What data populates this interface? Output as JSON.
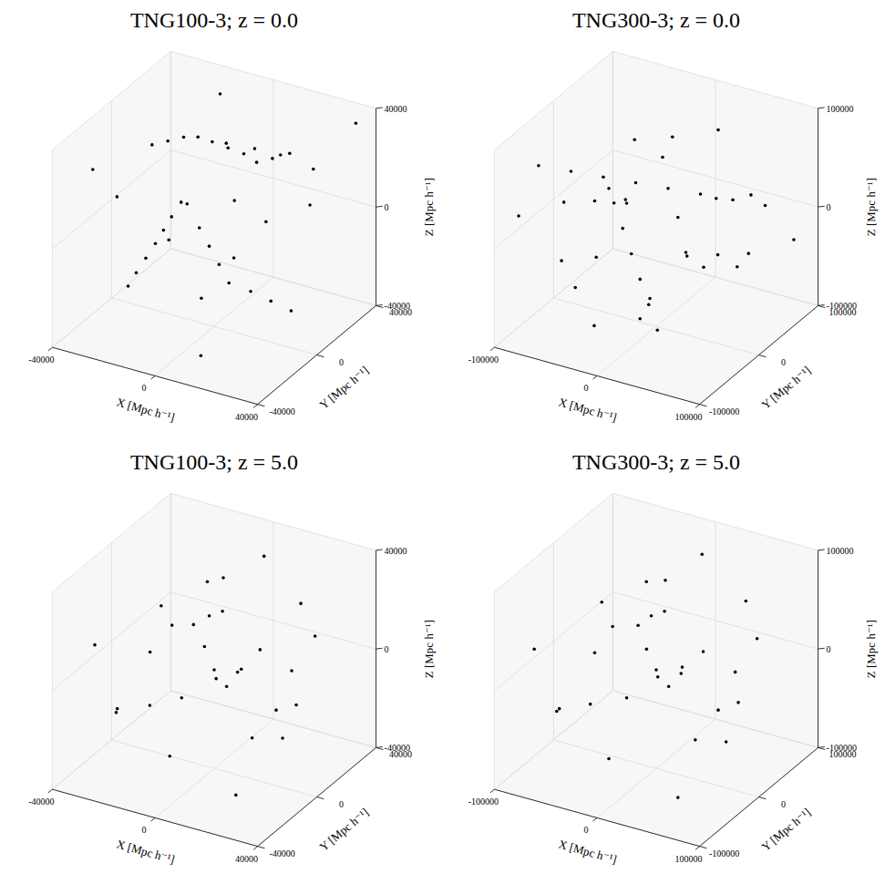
{
  "chart_data": [
    {
      "type": "scatter3d",
      "title": "TNG100-3; z = 0.0",
      "x_label": "X [Mpc h⁻¹]",
      "y_label": "Y [Mpc h⁻¹]",
      "z_label": "Z [Mpc h⁻¹]",
      "xlim": [
        -40000,
        40000
      ],
      "ylim": [
        -40000,
        40000
      ],
      "zlim": [
        -40000,
        40000
      ],
      "xticks": [
        -40000,
        0,
        40000
      ],
      "yticks": [
        -40000,
        0,
        40000
      ],
      "zticks": [
        -40000,
        0,
        40000
      ],
      "grid": true,
      "color": "#000000",
      "marker": "point",
      "x": [
        -30000,
        -25000,
        -20000,
        -15000,
        -10000,
        -5000,
        0,
        5000,
        10000,
        15000,
        -10000,
        -12000,
        -14000,
        -16000,
        -18000,
        -20000,
        -22000,
        0,
        5000,
        10000,
        15000,
        20000,
        25000,
        30000,
        -30000,
        -35000,
        35000,
        20000,
        -5000,
        10000,
        -25000,
        25000,
        0,
        -35000,
        30000,
        -15000,
        15000,
        5000,
        -8000,
        12000
      ],
      "y": [
        10000,
        12000,
        14000,
        15000,
        16000,
        18000,
        20000,
        20000,
        22000,
        25000,
        -5000,
        -8000,
        -10000,
        -12000,
        -15000,
        -18000,
        -20000,
        -10000,
        -12000,
        -14000,
        -16000,
        -10000,
        -5000,
        0,
        -30000,
        30000,
        35000,
        30000,
        0,
        10000,
        25000,
        -30000,
        35000,
        -5000,
        15000,
        30000,
        -35000,
        5000,
        22000,
        24000
      ],
      "z": [
        20000,
        22000,
        24000,
        25000,
        24000,
        22000,
        20000,
        18000,
        20000,
        22000,
        10000,
        5000,
        0,
        -5000,
        -10000,
        -15000,
        -20000,
        5000,
        0,
        -5000,
        -10000,
        -15000,
        -20000,
        -25000,
        30000,
        -30000,
        35000,
        0,
        -30000,
        30000,
        -10000,
        10000,
        -15000,
        5000,
        25000,
        35000,
        -30000,
        10000,
        21000,
        21000
      ]
    },
    {
      "type": "scatter3d",
      "title": "TNG300-3; z = 0.0",
      "x_label": "X [Mpc h⁻¹]",
      "y_label": "Y [Mpc h⁻¹]",
      "z_label": "Z [Mpc h⁻¹]",
      "xlim": [
        -100000,
        100000
      ],
      "ylim": [
        -100000,
        100000
      ],
      "zlim": [
        -100000,
        100000
      ],
      "xticks": [
        -100000,
        0,
        100000
      ],
      "yticks": [
        -100000,
        0,
        100000
      ],
      "zticks": [
        -100000,
        0,
        100000
      ],
      "grid": true,
      "color": "#000000",
      "marker": "point",
      "x": [
        -80000,
        -60000,
        -40000,
        -20000,
        0,
        20000,
        40000,
        60000,
        -70000,
        -50000,
        -30000,
        -10000,
        10000,
        30000,
        -90000,
        -60000,
        -30000,
        30000,
        60000,
        90000,
        0,
        0,
        0,
        0,
        50000,
        -50000,
        50000,
        -50000,
        70000,
        -70000,
        20000,
        -20000,
        85000,
        -85000,
        40000,
        -40000,
        10000,
        -10000,
        75000,
        -75000
      ],
      "y": [
        -60000,
        -40000,
        -20000,
        0,
        20000,
        40000,
        60000,
        80000,
        50000,
        30000,
        10000,
        -10000,
        -30000,
        -50000,
        0,
        0,
        0,
        0,
        0,
        0,
        -80000,
        -50000,
        50000,
        80000,
        -50000,
        50000,
        50000,
        -50000,
        -20000,
        20000,
        70000,
        -70000,
        85000,
        -85000,
        -80000,
        80000,
        10000,
        -10000,
        30000,
        -30000
      ],
      "z": [
        70000,
        60000,
        50000,
        40000,
        30000,
        20000,
        10000,
        0,
        -20000,
        -30000,
        -40000,
        -50000,
        -60000,
        -70000,
        0,
        10000,
        20000,
        -20000,
        -10000,
        0,
        80000,
        50000,
        -50000,
        -80000,
        50000,
        50000,
        -50000,
        -50000,
        60000,
        -60000,
        70000,
        -70000,
        -30000,
        30000,
        -20000,
        20000,
        90000,
        -90000,
        40000,
        -40000
      ]
    },
    {
      "type": "scatter3d",
      "title": "TNG100-3; z = 5.0",
      "x_label": "X [Mpc h⁻¹]",
      "y_label": "Y [Mpc h⁻¹]",
      "z_label": "Z [Mpc h⁻¹]",
      "xlim": [
        -40000,
        40000
      ],
      "ylim": [
        -40000,
        40000
      ],
      "zlim": [
        -40000,
        40000
      ],
      "xticks": [
        -40000,
        0,
        40000
      ],
      "yticks": [
        -40000,
        0,
        40000
      ],
      "zticks": [
        -40000,
        0,
        40000
      ],
      "grid": true,
      "color": "#000000",
      "marker": "point",
      "x": [
        -35000,
        -28000,
        -20000,
        -12000,
        -5000,
        0,
        5000,
        12000,
        18000,
        25000,
        32000,
        -30000,
        -18000,
        -8000,
        2000,
        10000,
        20000,
        28000,
        35000,
        -25000,
        -15000,
        -10000,
        -6000,
        0,
        6000,
        15000,
        22000,
        -32000,
        -2000,
        8000
      ],
      "y": [
        -20000,
        5000,
        30000,
        -15000,
        10000,
        -30000,
        25000,
        -5000,
        15000,
        -25000,
        0,
        30000,
        -35000,
        20000,
        -10000,
        35000,
        -20000,
        10000,
        -35000,
        0,
        12000,
        14000,
        16000,
        0,
        -2000,
        5000,
        30000,
        -10000,
        -25000,
        28000
      ],
      "z": [
        10000,
        -25000,
        15000,
        30000,
        -10000,
        -20000,
        35000,
        5000,
        -30000,
        20000,
        -5000,
        -35000,
        -5000,
        25000,
        15000,
        -15000,
        -35000,
        30000,
        0,
        0,
        8000,
        12000,
        14000,
        0,
        -4000,
        10000,
        5000,
        -20000,
        30000,
        -28000
      ]
    },
    {
      "type": "scatter3d",
      "title": "TNG300-3; z = 5.0",
      "x_label": "X [Mpc h⁻¹]",
      "y_label": "Y [Mpc h⁻¹]",
      "z_label": "Z [Mpc h⁻¹]",
      "xlim": [
        -100000,
        100000
      ],
      "ylim": [
        -100000,
        100000
      ],
      "zlim": [
        -100000,
        100000
      ],
      "xticks": [
        -100000,
        0,
        100000
      ],
      "yticks": [
        -100000,
        0,
        100000
      ],
      "zticks": [
        -100000,
        0,
        100000
      ],
      "grid": true,
      "color": "#000000",
      "marker": "point",
      "x": [
        -90000,
        -70000,
        -50000,
        -30000,
        -10000,
        0,
        10000,
        30000,
        45000,
        60000,
        80000,
        -75000,
        -45000,
        -20000,
        5000,
        25000,
        50000,
        70000,
        90000,
        -60000,
        -35000,
        -25000,
        -15000,
        0,
        15000,
        40000,
        55000,
        -80000,
        -5000,
        20000
      ],
      "y": [
        -50000,
        10000,
        70000,
        -40000,
        20000,
        -80000,
        60000,
        -10000,
        40000,
        -60000,
        0,
        80000,
        -90000,
        50000,
        -25000,
        90000,
        -50000,
        30000,
        -90000,
        0,
        30000,
        35000,
        40000,
        0,
        -5000,
        10000,
        75000,
        -25000,
        -65000,
        70000
      ],
      "z": [
        20000,
        -60000,
        40000,
        80000,
        -20000,
        -50000,
        90000,
        10000,
        -80000,
        50000,
        -10000,
        -90000,
        -10000,
        60000,
        35000,
        -40000,
        -90000,
        75000,
        0,
        0,
        20000,
        30000,
        35000,
        0,
        -10000,
        25000,
        10000,
        -50000,
        75000,
        -70000
      ]
    }
  ]
}
